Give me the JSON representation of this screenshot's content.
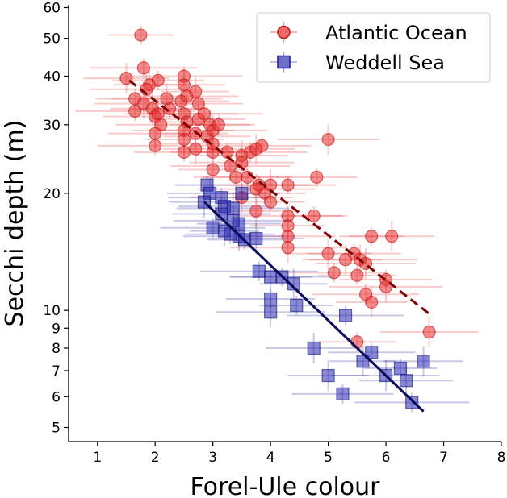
{
  "chart_data": {
    "type": "scatter",
    "title": "",
    "xlabel": "Forel-Ule colour",
    "ylabel": "Secchi depth (m)",
    "xlim": [
      0.5,
      8
    ],
    "ylim": [
      4.6,
      61
    ],
    "yscale": "log",
    "grid": false,
    "legend_position": "top-right",
    "x_ticks": [
      1,
      2,
      3,
      4,
      5,
      6,
      7,
      8
    ],
    "y_ticks": [
      5,
      6,
      7,
      8,
      9,
      10,
      20,
      30,
      40,
      50,
      60
    ],
    "x_tick_labels": [
      "1",
      "2",
      "3",
      "4",
      "5",
      "6",
      "7",
      "8"
    ],
    "y_tick_labels": [
      "5",
      "6",
      "7",
      "8",
      "9",
      "10",
      "20",
      "30",
      "40",
      "50",
      "60"
    ],
    "series": [
      {
        "name": "Atlantic Ocean",
        "marker": "circle",
        "color": "#e02020",
        "line_color": "#800000",
        "line_style": "dashed",
        "fit_line": [
          [
            1.55,
            39.0
          ],
          [
            6.75,
            9.8
          ]
        ],
        "points": [
          [
            1.75,
            51
          ],
          [
            1.5,
            39.5
          ],
          [
            1.8,
            42
          ],
          [
            1.9,
            38
          ],
          [
            2.05,
            39
          ],
          [
            1.85,
            37
          ],
          [
            1.65,
            35
          ],
          [
            1.8,
            34
          ],
          [
            1.65,
            32.5
          ],
          [
            1.95,
            33
          ],
          [
            2.0,
            31.5
          ],
          [
            2.05,
            32
          ],
          [
            2.1,
            30
          ],
          [
            2.2,
            35
          ],
          [
            2.25,
            33
          ],
          [
            2.45,
            34.5
          ],
          [
            2.5,
            40
          ],
          [
            2.5,
            38
          ],
          [
            2.55,
            35.5
          ],
          [
            2.7,
            36.5
          ],
          [
            2.75,
            34
          ],
          [
            2.5,
            32
          ],
          [
            2.55,
            30.5
          ],
          [
            2.75,
            31
          ],
          [
            2.85,
            32
          ],
          [
            2.95,
            30
          ],
          [
            2.5,
            29
          ],
          [
            2.7,
            28.5
          ],
          [
            2.9,
            28
          ],
          [
            3.0,
            29
          ],
          [
            3.1,
            30
          ],
          [
            2.0,
            28.5
          ],
          [
            2.0,
            26.5
          ],
          [
            2.5,
            27.5
          ],
          [
            2.5,
            25.5
          ],
          [
            2.7,
            26
          ],
          [
            3.0,
            25.5
          ],
          [
            3.0,
            26.8
          ],
          [
            3.25,
            25.5
          ],
          [
            3.5,
            25
          ],
          [
            3.65,
            25.5
          ],
          [
            3.75,
            26
          ],
          [
            3.85,
            26.5
          ],
          [
            3.3,
            23.5
          ],
          [
            3.4,
            22
          ],
          [
            3.5,
            24
          ],
          [
            3.0,
            23
          ],
          [
            3.6,
            22
          ],
          [
            3.8,
            21
          ],
          [
            4.0,
            21
          ],
          [
            4.3,
            21
          ],
          [
            3.75,
            20.5
          ],
          [
            3.9,
            20
          ],
          [
            3.5,
            19.5
          ],
          [
            4.0,
            19
          ],
          [
            3.75,
            18
          ],
          [
            4.3,
            17.5
          ],
          [
            4.3,
            16.5
          ],
          [
            4.3,
            15.5
          ],
          [
            4.3,
            14.5
          ],
          [
            4.8,
            22
          ],
          [
            5.0,
            27.5
          ],
          [
            4.75,
            17.5
          ],
          [
            5.0,
            14
          ],
          [
            5.1,
            12.5
          ],
          [
            5.3,
            13.5
          ],
          [
            5.45,
            14
          ],
          [
            5.55,
            13.5
          ],
          [
            5.5,
            12.3
          ],
          [
            5.65,
            13.2
          ],
          [
            5.75,
            15.5
          ],
          [
            6.1,
            15.5
          ],
          [
            5.65,
            11
          ],
          [
            5.75,
            10.5
          ],
          [
            6.0,
            12
          ],
          [
            6.0,
            11.5
          ],
          [
            5.5,
            8.3
          ],
          [
            6.75,
            8.8
          ]
        ]
      },
      {
        "name": "Weddell Sea",
        "marker": "square",
        "color": "#2828a8",
        "line_color": "#0a0a5a",
        "line_style": "solid",
        "fit_line": [
          [
            2.85,
            19.0
          ],
          [
            6.65,
            5.5
          ]
        ],
        "points": [
          [
            2.9,
            21
          ],
          [
            2.95,
            20
          ],
          [
            3.15,
            19.5
          ],
          [
            2.85,
            19
          ],
          [
            3.2,
            18.5
          ],
          [
            3.35,
            18.3
          ],
          [
            3.5,
            20
          ],
          [
            3.15,
            17.7
          ],
          [
            3.35,
            17
          ],
          [
            3.45,
            16.7
          ],
          [
            3.0,
            16.3
          ],
          [
            3.2,
            16
          ],
          [
            3.3,
            15.7
          ],
          [
            3.45,
            15.5
          ],
          [
            3.55,
            15.2
          ],
          [
            3.75,
            15.3
          ],
          [
            3.8,
            12.6
          ],
          [
            4.0,
            12.2
          ],
          [
            4.2,
            12.2
          ],
          [
            4.4,
            11.7
          ],
          [
            4.0,
            10.7
          ],
          [
            4.0,
            9.9
          ],
          [
            4.45,
            10.3
          ],
          [
            4.75,
            8.0
          ],
          [
            5.3,
            9.7
          ],
          [
            5.0,
            6.8
          ],
          [
            5.25,
            6.1
          ],
          [
            5.6,
            7.4
          ],
          [
            5.75,
            7.8
          ],
          [
            6.0,
            6.8
          ],
          [
            6.25,
            7.1
          ],
          [
            6.35,
            6.6
          ],
          [
            6.45,
            5.8
          ],
          [
            6.65,
            7.4
          ]
        ]
      }
    ]
  }
}
